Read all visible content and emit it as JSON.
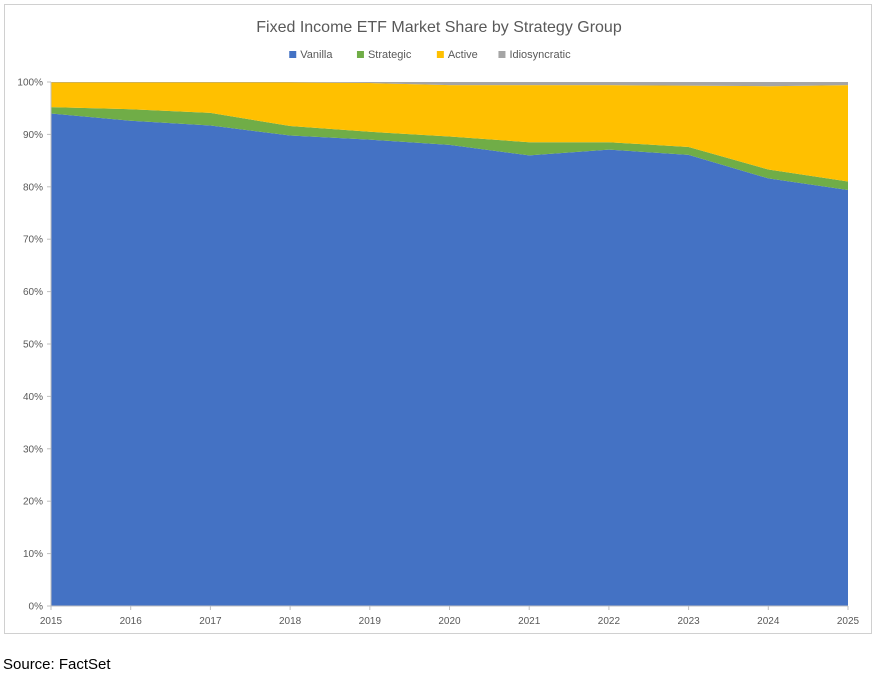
{
  "source_note": "Source: FactSet",
  "chart_data": {
    "type": "area",
    "stacked": true,
    "percent": true,
    "title": "Fixed Income ETF Market Share by Strategy Group",
    "x": [
      "2015",
      "2016",
      "2017",
      "2018",
      "2019",
      "2020",
      "2021",
      "2022",
      "2023",
      "2024",
      "2025"
    ],
    "ylim": [
      0,
      100
    ],
    "y_ticks": [
      "0%",
      "10%",
      "20%",
      "30%",
      "40%",
      "50%",
      "60%",
      "70%",
      "80%",
      "90%",
      "100%"
    ],
    "grid": false,
    "legend_position": "top",
    "series": [
      {
        "name": "Vanilla",
        "color": "#4472C4",
        "values": [
          94.0,
          92.6,
          91.7,
          89.8,
          89.0,
          88.0,
          86.0,
          87.1,
          86.1,
          81.6,
          79.4
        ]
      },
      {
        "name": "Strategic",
        "color": "#70AD47",
        "values": [
          1.2,
          2.2,
          2.4,
          1.8,
          1.5,
          1.6,
          2.5,
          1.4,
          1.5,
          1.7,
          1.6
        ]
      },
      {
        "name": "Active",
        "color": "#FFC000",
        "values": [
          4.7,
          5.1,
          5.8,
          8.3,
          9.3,
          9.8,
          10.9,
          10.9,
          11.7,
          15.9,
          18.4
        ]
      },
      {
        "name": "Idiosyncratic",
        "color": "#A5A5A5",
        "values": [
          0.1,
          0.1,
          0.1,
          0.1,
          0.2,
          0.6,
          0.6,
          0.6,
          0.7,
          0.8,
          0.6
        ]
      }
    ]
  }
}
